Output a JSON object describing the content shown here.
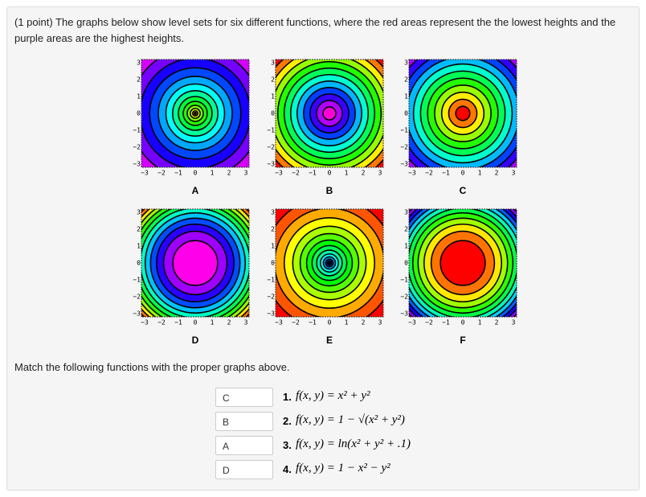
{
  "problem": {
    "prompt": "(1 point) The graphs below show level sets for six different functions, where the red areas represent the the lowest heights and the purple areas are the highest heights.",
    "axis_ticks": [
      "−3",
      "−2",
      "−1",
      "0",
      "1",
      "2",
      "3"
    ],
    "graphs": [
      "A",
      "B",
      "C",
      "D",
      "E",
      "F"
    ],
    "instruction": "Match the following functions with the proper graphs above.",
    "items": [
      {
        "answer": "C",
        "number": "1.",
        "formula": "f(x, y) = x² + y²"
      },
      {
        "answer": "B",
        "number": "2.",
        "formula": "f(x, y) = 1 − √(x² + y²)"
      },
      {
        "answer": "A",
        "number": "3.",
        "formula": "f(x, y) = ln(x² + y² + .1)"
      },
      {
        "answer": "D",
        "number": "4.",
        "formula": "f(x, y) = 1 − x² − y²"
      }
    ]
  }
}
